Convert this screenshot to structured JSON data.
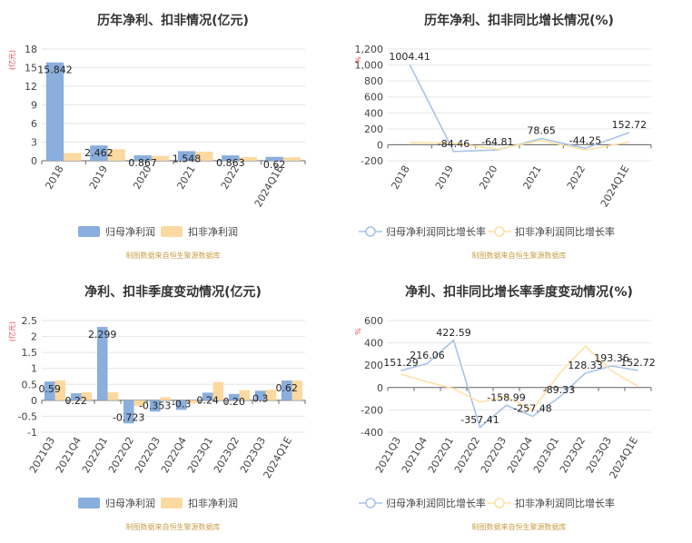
{
  "colors": {
    "bar1": "#8aaedd",
    "bar2": "#fcd9a0",
    "line1": "#a8c3e6",
    "line2": "#fde2a6",
    "grid": "#e6e6e6",
    "axis": "#666666",
    "unit": "#e0454b",
    "source": "#c8a04a"
  },
  "chart_data": [
    {
      "type": "bar",
      "title": "历年净利、扣非情况(亿元)",
      "unit": "(亿元)",
      "categories": [
        "2018",
        "2019",
        "2020",
        "2021",
        "2022",
        "2024Q1E"
      ],
      "series": [
        {
          "name": "归母净利润",
          "values": [
            15.842,
            2.462,
            0.867,
            1.548,
            0.863,
            0.62
          ],
          "labels": [
            "15.842",
            "2.462",
            "0.867",
            "1.548",
            "0.863",
            "0.62"
          ]
        },
        {
          "name": "扣非净利润",
          "values": [
            1.25,
            1.85,
            0.78,
            1.45,
            0.58,
            0.55
          ]
        }
      ],
      "yticks": [
        "18",
        "15",
        "12",
        "9",
        "6",
        "3",
        "0"
      ],
      "ylim": [
        0,
        18
      ],
      "grid": true,
      "legend": "bottom",
      "source": "制图数据来自恒生聚源数据库"
    },
    {
      "type": "line",
      "title": "历年净利、扣非同比增长情况(%)",
      "unit": "%",
      "categories": [
        "2018",
        "2019",
        "2020",
        "2021",
        "2022",
        "2024Q1E"
      ],
      "series": [
        {
          "name": "归母净利润同比增长率",
          "values": [
            1004.41,
            -84.46,
            -64.81,
            78.65,
            -44.25,
            152.72
          ],
          "labels": [
            "1004.41",
            "-84.46",
            "-64.81",
            "78.65",
            "-44.25",
            "152.72"
          ]
        },
        {
          "name": "扣非净利润同比增长率",
          "values": [
            30,
            20,
            -55,
            55,
            -65,
            35
          ]
        }
      ],
      "yticks": [
        "1,200",
        "1,000",
        "800",
        "600",
        "400",
        "200",
        "0",
        "-200"
      ],
      "ylim": [
        -200,
        1200
      ],
      "grid": true,
      "legend": "bottom",
      "source": "制图数据来自恒生聚源数据库"
    },
    {
      "type": "bar",
      "title": "净利、扣非季度变动情况(亿元)",
      "unit": "(亿元)",
      "categories": [
        "2021Q3",
        "2021Q4",
        "2022Q1",
        "2022Q2",
        "2022Q3",
        "2022Q4",
        "2023Q1",
        "2023Q2",
        "2023Q3",
        "2024Q1E"
      ],
      "series": [
        {
          "name": "归母净利润",
          "values": [
            0.59,
            0.22,
            2.299,
            -0.723,
            -0.353,
            -0.3,
            0.24,
            0.2,
            0.3,
            0.62
          ],
          "labels": [
            "0.59",
            "0.22",
            "2.299",
            "-0.723",
            "-0.353",
            "-0.3",
            "0.24",
            "0.20",
            "0.3",
            "0.62"
          ]
        },
        {
          "name": "扣非净利润",
          "values": [
            0.62,
            0.25,
            0.25,
            -0.18,
            0.1,
            -0.1,
            0.57,
            0.32,
            0.33,
            0.62
          ]
        }
      ],
      "yticks": [
        "2.5",
        "2",
        "1.5",
        "1",
        "0.5",
        "0",
        "-0.5",
        "-1"
      ],
      "ylim": [
        -1,
        2.5
      ],
      "grid": true,
      "legend": "bottom",
      "source": "制图数据来自恒生聚源数据库"
    },
    {
      "type": "line",
      "title": "净利、扣非同比增长率季度变动情况(%)",
      "unit": "%",
      "categories": [
        "2021Q3",
        "2021Q4",
        "2022Q1",
        "2022Q2",
        "2022Q3",
        "2022Q4",
        "2023Q1",
        "2023Q2",
        "2023Q3",
        "2024Q1E"
      ],
      "series": [
        {
          "name": "归母净利润同比增长率",
          "values": [
            151.29,
            216.06,
            422.59,
            -357.41,
            -158.99,
            -257.48,
            -89.33,
            128.33,
            193.36,
            152.72
          ],
          "labels": [
            "151.29",
            "216.06",
            "422.59",
            "-357.41",
            "-158.99",
            "-257.48",
            "-89.33",
            "128.33",
            "193.36",
            "152.72"
          ]
        },
        {
          "name": "扣非净利润同比增长率",
          "values": [
            120,
            50,
            -10,
            -130,
            -80,
            -200,
            120,
            370,
            150,
            10
          ]
        }
      ],
      "yticks": [
        "600",
        "400",
        "200",
        "0",
        "-200",
        "-400"
      ],
      "ylim": [
        -400,
        600
      ],
      "grid": true,
      "legend": "bottom",
      "source": "制图数据来自恒生聚源数据库"
    }
  ]
}
